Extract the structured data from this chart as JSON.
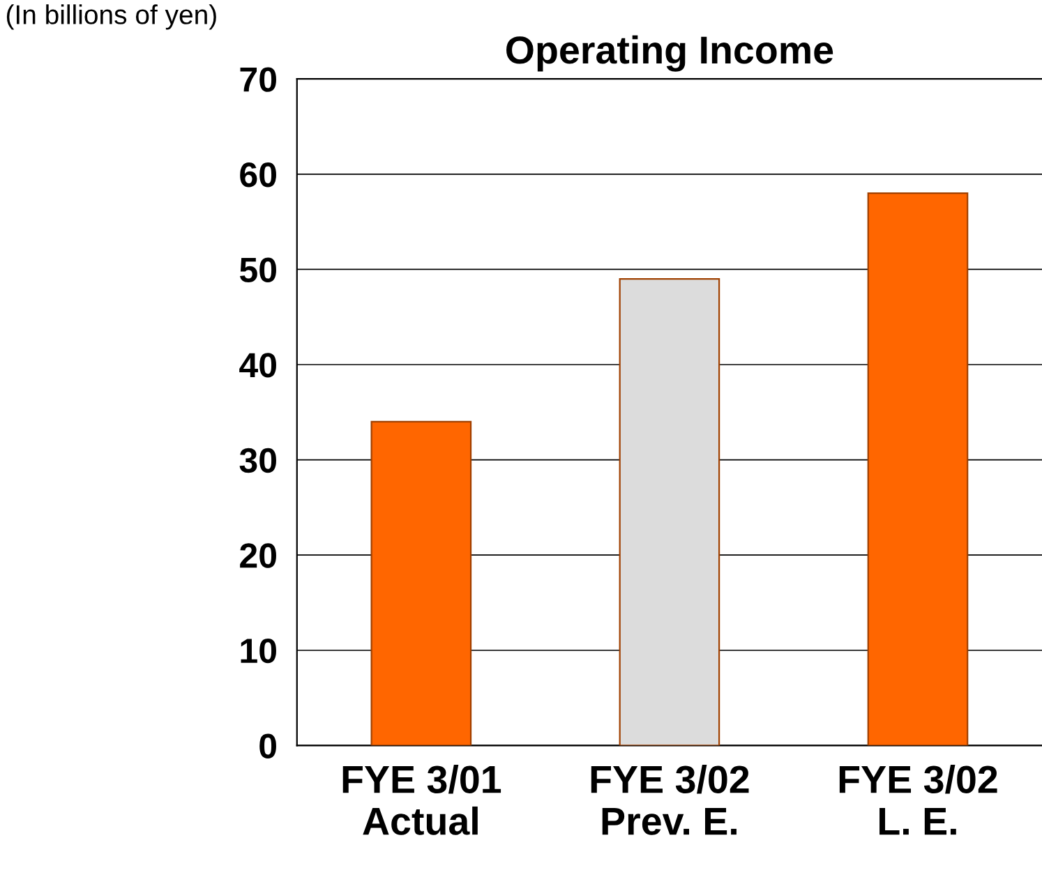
{
  "chart_data": {
    "type": "bar",
    "title": "Operating Income",
    "categories": [
      "FYE 3/01\nActual",
      "FYE 3/02\nPrev. E.",
      "FYE 3/02\nL. E."
    ],
    "values": [
      34,
      49,
      58
    ],
    "colors": [
      "#ff6600",
      "#dcdcdc",
      "#ff6600"
    ],
    "ylim": [
      0,
      70
    ],
    "yticks": [
      0,
      10,
      20,
      30,
      40,
      50,
      60,
      70
    ],
    "grid": "y",
    "annotations": [
      "(In billions of yen)"
    ]
  }
}
